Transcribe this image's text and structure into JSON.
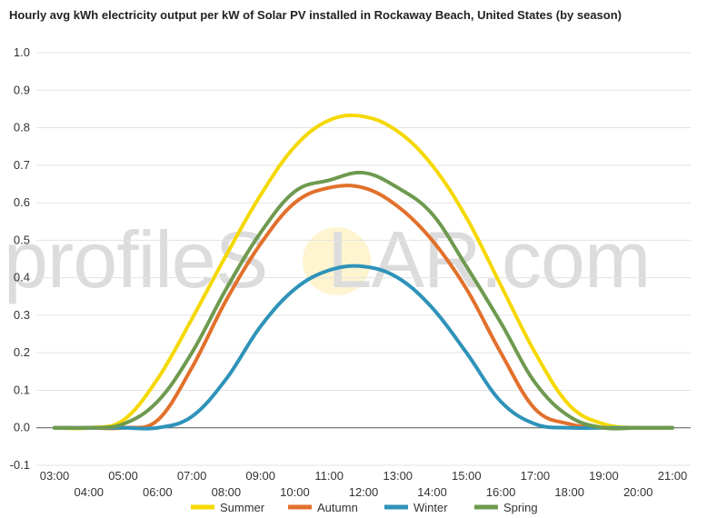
{
  "chart_data": {
    "type": "line",
    "title": "Hourly avg kWh electricity output per kW of Solar PV installed in Rockaway Beach, United States (by season)",
    "xlabel": "",
    "ylabel": "",
    "x": [
      "03:00",
      "04:00",
      "05:00",
      "06:00",
      "07:00",
      "08:00",
      "09:00",
      "10:00",
      "11:00",
      "12:00",
      "13:00",
      "14:00",
      "15:00",
      "16:00",
      "17:00",
      "18:00",
      "19:00",
      "20:00",
      "21:00"
    ],
    "ylim": [
      -0.1,
      1.0
    ],
    "yticks": [
      "1.0",
      "0.9",
      "0.8",
      "0.7",
      "0.6",
      "0.5",
      "0.4",
      "0.3",
      "0.2",
      "0.1",
      "0.0",
      "-0.1"
    ],
    "grid": true,
    "legend_position": "bottom",
    "series": [
      {
        "name": "Summer",
        "color": "#f5d800",
        "values": [
          0,
          0,
          0.02,
          0.13,
          0.29,
          0.46,
          0.62,
          0.75,
          0.82,
          0.83,
          0.79,
          0.7,
          0.56,
          0.38,
          0.2,
          0.06,
          0.01,
          0,
          0
        ]
      },
      {
        "name": "Autumn",
        "color": "#e2702b",
        "values": [
          0,
          0,
          0,
          0.02,
          0.16,
          0.34,
          0.49,
          0.6,
          0.64,
          0.64,
          0.59,
          0.5,
          0.37,
          0.2,
          0.05,
          0.01,
          0,
          0,
          0
        ]
      },
      {
        "name": "Winter",
        "color": "#2e93b9",
        "values": [
          0,
          0,
          0,
          0,
          0.03,
          0.13,
          0.27,
          0.37,
          0.42,
          0.43,
          0.4,
          0.32,
          0.2,
          0.07,
          0.01,
          0,
          0,
          0,
          0
        ]
      },
      {
        "name": "Spring",
        "color": "#6e9a4f",
        "values": [
          0,
          0,
          0.01,
          0.07,
          0.2,
          0.37,
          0.52,
          0.63,
          0.66,
          0.68,
          0.64,
          0.57,
          0.43,
          0.28,
          0.12,
          0.03,
          0,
          0,
          0
        ]
      }
    ]
  },
  "watermark": {
    "text_left": "profileS",
    "text_right": "LAR.com"
  }
}
